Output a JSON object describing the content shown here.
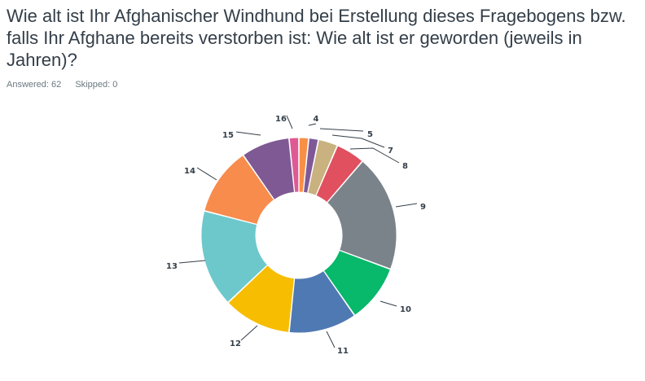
{
  "question": {
    "title": "Wie alt ist Ihr Afghanischer Windhund bei Erstellung dieses Fragebogens bzw. falls Ihr Afghane bereits verstorben ist: Wie alt ist er geworden (jeweils in Jahren)?"
  },
  "stats": {
    "answered": "Answered: 62",
    "skipped": "Skipped: 0"
  },
  "chart_data": {
    "type": "pie",
    "style": "donut",
    "categories": [
      "4",
      "5",
      "7",
      "8",
      "9",
      "10",
      "11",
      "12",
      "13",
      "14",
      "15",
      "16"
    ],
    "values": [
      1,
      1,
      2,
      3,
      12,
      6,
      7,
      7,
      10,
      7,
      5,
      1
    ],
    "colors": [
      "#f79046",
      "#7f5997",
      "#c9b27f",
      "#e0505f",
      "#7b838a",
      "#08b86b",
      "#4f79b2",
      "#f7bd00",
      "#6dc8cc",
      "#f78c4d",
      "#7f5993",
      "#df5a94"
    ],
    "legend": "none"
  }
}
